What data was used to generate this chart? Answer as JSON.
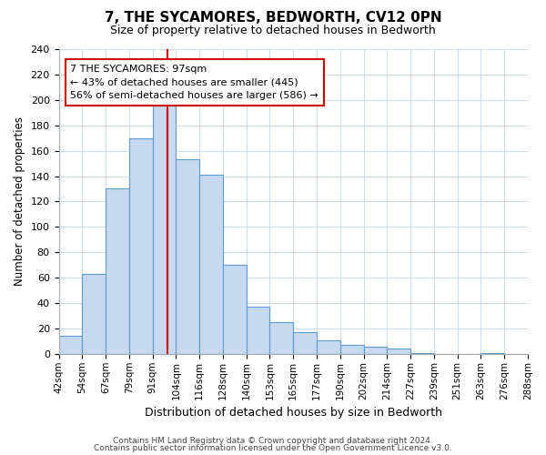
{
  "title": "7, THE SYCAMORES, BEDWORTH, CV12 0PN",
  "subtitle": "Size of property relative to detached houses in Bedworth",
  "xlabel": "Distribution of detached houses by size in Bedworth",
  "ylabel": "Number of detached properties",
  "bin_labels": [
    "42sqm",
    "54sqm",
    "67sqm",
    "79sqm",
    "91sqm",
    "104sqm",
    "116sqm",
    "128sqm",
    "140sqm",
    "153sqm",
    "165sqm",
    "177sqm",
    "190sqm",
    "202sqm",
    "214sqm",
    "227sqm",
    "239sqm",
    "251sqm",
    "263sqm",
    "276sqm",
    "288sqm"
  ],
  "bar_heights": [
    14,
    63,
    130,
    170,
    200,
    153,
    141,
    70,
    37,
    25,
    17,
    11,
    7,
    6,
    4,
    1,
    0,
    0,
    1,
    0
  ],
  "bar_color": "#c6d9f0",
  "bar_edge_color": "#5b9bd5",
  "vline_x": 4.62,
  "vline_color": "#cc0000",
  "annotation_title": "7 THE SYCAMORES: 97sqm",
  "annotation_line1": "← 43% of detached houses are smaller (445)",
  "annotation_line2": "56% of semi-detached houses are larger (586) →",
  "annotation_box_color": "#ffffff",
  "annotation_box_edge": "#cc0000",
  "ylim": [
    0,
    240
  ],
  "yticks": [
    0,
    20,
    40,
    60,
    80,
    100,
    120,
    140,
    160,
    180,
    200,
    220,
    240
  ],
  "footer1": "Contains HM Land Registry data © Crown copyright and database right 2024.",
  "footer2": "Contains public sector information licensed under the Open Government Licence v3.0.",
  "background_color": "#ffffff",
  "grid_color": "#d0dded"
}
